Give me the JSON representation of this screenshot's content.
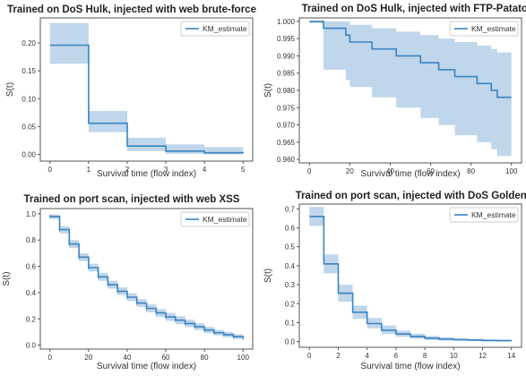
{
  "colors": {
    "line": "#3a84c1",
    "band": "#aac8e4",
    "axis": "#555555"
  },
  "chart_data": [
    {
      "type": "line",
      "title": "Trained on DoS Hulk, injected with web brute-force",
      "xlabel": "Survival time (flow index)",
      "ylabel": "S(t)",
      "legend": "top-right",
      "xlim": [
        -0.25,
        5.25
      ],
      "ylim": [
        -0.012,
        0.245
      ],
      "xticks": [
        "0",
        "1",
        "2",
        "3",
        "4",
        "5"
      ],
      "yticks": [
        "0.00",
        "0.05",
        "0.10",
        "0.15",
        "0.20"
      ],
      "series": [
        {
          "name": "KM_estimate",
          "x": [
            0,
            1,
            2,
            3,
            4,
            5
          ],
          "y": [
            0.196,
            0.056,
            0.015,
            0.006,
            0.003,
            0.002
          ],
          "lower": [
            0.163,
            0.04,
            0.006,
            0.001,
            0.0,
            0.0
          ],
          "upper": [
            0.236,
            0.078,
            0.03,
            0.018,
            0.013,
            0.01
          ]
        }
      ]
    },
    {
      "type": "line",
      "title": "Trained on DoS Hulk, injected with FTP-Patator",
      "xlabel": "Survival time (flow index)",
      "ylabel": "S(t)",
      "legend": "top-right",
      "xlim": [
        -5,
        105
      ],
      "ylim": [
        0.959,
        1.001
      ],
      "xticks": [
        "0",
        "20",
        "40",
        "60",
        "80",
        "100"
      ],
      "yticks": [
        "0.960",
        "0.965",
        "0.970",
        "0.975",
        "0.980",
        "0.985",
        "0.990",
        "0.995",
        "1.000"
      ],
      "series": [
        {
          "name": "KM_estimate",
          "x": [
            0,
            7,
            18,
            20,
            31,
            43,
            55,
            64,
            72,
            83,
            90,
            93,
            100
          ],
          "y": [
            1.0,
            0.998,
            0.996,
            0.994,
            0.992,
            0.99,
            0.988,
            0.986,
            0.984,
            0.982,
            0.98,
            0.978,
            0.978
          ],
          "lower": [
            0.9995,
            0.986,
            0.983,
            0.981,
            0.978,
            0.975,
            0.972,
            0.97,
            0.967,
            0.965,
            0.963,
            0.961,
            0.961
          ],
          "upper": [
            1.0,
            1.0,
            1.0,
            0.999,
            0.998,
            0.997,
            0.996,
            0.995,
            0.994,
            0.993,
            0.992,
            0.991,
            0.991
          ]
        }
      ]
    },
    {
      "type": "line",
      "title": "Trained on port scan, injected with web XSS",
      "xlabel": "Survival time (flow index)",
      "ylabel": "S(t)",
      "legend": "top-right",
      "xlim": [
        -5,
        105
      ],
      "ylim": [
        -0.03,
        1.04
      ],
      "xticks": [
        "0",
        "20",
        "40",
        "60",
        "80",
        "100"
      ],
      "yticks": [
        "0.0",
        "0.2",
        "0.4",
        "0.6",
        "0.8",
        "1.0"
      ],
      "series": [
        {
          "name": "KM_estimate",
          "x": [
            0,
            5,
            10,
            15,
            20,
            25,
            30,
            35,
            40,
            45,
            50,
            55,
            60,
            65,
            70,
            75,
            80,
            85,
            90,
            95,
            100
          ],
          "y": [
            0.98,
            0.88,
            0.77,
            0.67,
            0.59,
            0.52,
            0.46,
            0.41,
            0.365,
            0.32,
            0.28,
            0.245,
            0.215,
            0.19,
            0.165,
            0.14,
            0.115,
            0.095,
            0.08,
            0.065,
            0.055
          ],
          "lower": [
            0.96,
            0.85,
            0.74,
            0.64,
            0.56,
            0.49,
            0.43,
            0.38,
            0.335,
            0.29,
            0.25,
            0.215,
            0.185,
            0.16,
            0.137,
            0.114,
            0.092,
            0.074,
            0.06,
            0.047,
            0.038
          ],
          "upper": [
            0.995,
            0.905,
            0.8,
            0.7,
            0.62,
            0.55,
            0.49,
            0.44,
            0.395,
            0.35,
            0.31,
            0.275,
            0.245,
            0.22,
            0.193,
            0.166,
            0.138,
            0.116,
            0.1,
            0.083,
            0.072
          ]
        }
      ]
    },
    {
      "type": "line",
      "title": "Trained on port scan, injected with DoS GoldenEye",
      "xlabel": "Survival time (flow index)",
      "ylabel": "S(t)",
      "legend": "top-right",
      "xlim": [
        -0.7,
        14.7
      ],
      "ylim": [
        -0.03,
        0.725
      ],
      "xticks": [
        "0",
        "2",
        "4",
        "6",
        "8",
        "10",
        "12",
        "14"
      ],
      "yticks": [
        "0.0",
        "0.1",
        "0.2",
        "0.3",
        "0.4",
        "0.5",
        "0.6",
        "0.7"
      ],
      "series": [
        {
          "name": "KM_estimate",
          "x": [
            0,
            1,
            2,
            3,
            4,
            5,
            6,
            7,
            8,
            9,
            10,
            11,
            12,
            13,
            14
          ],
          "y": [
            0.66,
            0.41,
            0.255,
            0.155,
            0.095,
            0.06,
            0.04,
            0.027,
            0.018,
            0.013,
            0.01,
            0.008,
            0.006,
            0.005,
            0.004
          ],
          "lower": [
            0.61,
            0.36,
            0.21,
            0.12,
            0.07,
            0.04,
            0.025,
            0.015,
            0.009,
            0.006,
            0.004,
            0.003,
            0.002,
            0.001,
            0.001
          ],
          "upper": [
            0.71,
            0.46,
            0.3,
            0.19,
            0.125,
            0.085,
            0.058,
            0.042,
            0.03,
            0.023,
            0.018,
            0.015,
            0.012,
            0.01,
            0.009
          ]
        }
      ]
    }
  ]
}
